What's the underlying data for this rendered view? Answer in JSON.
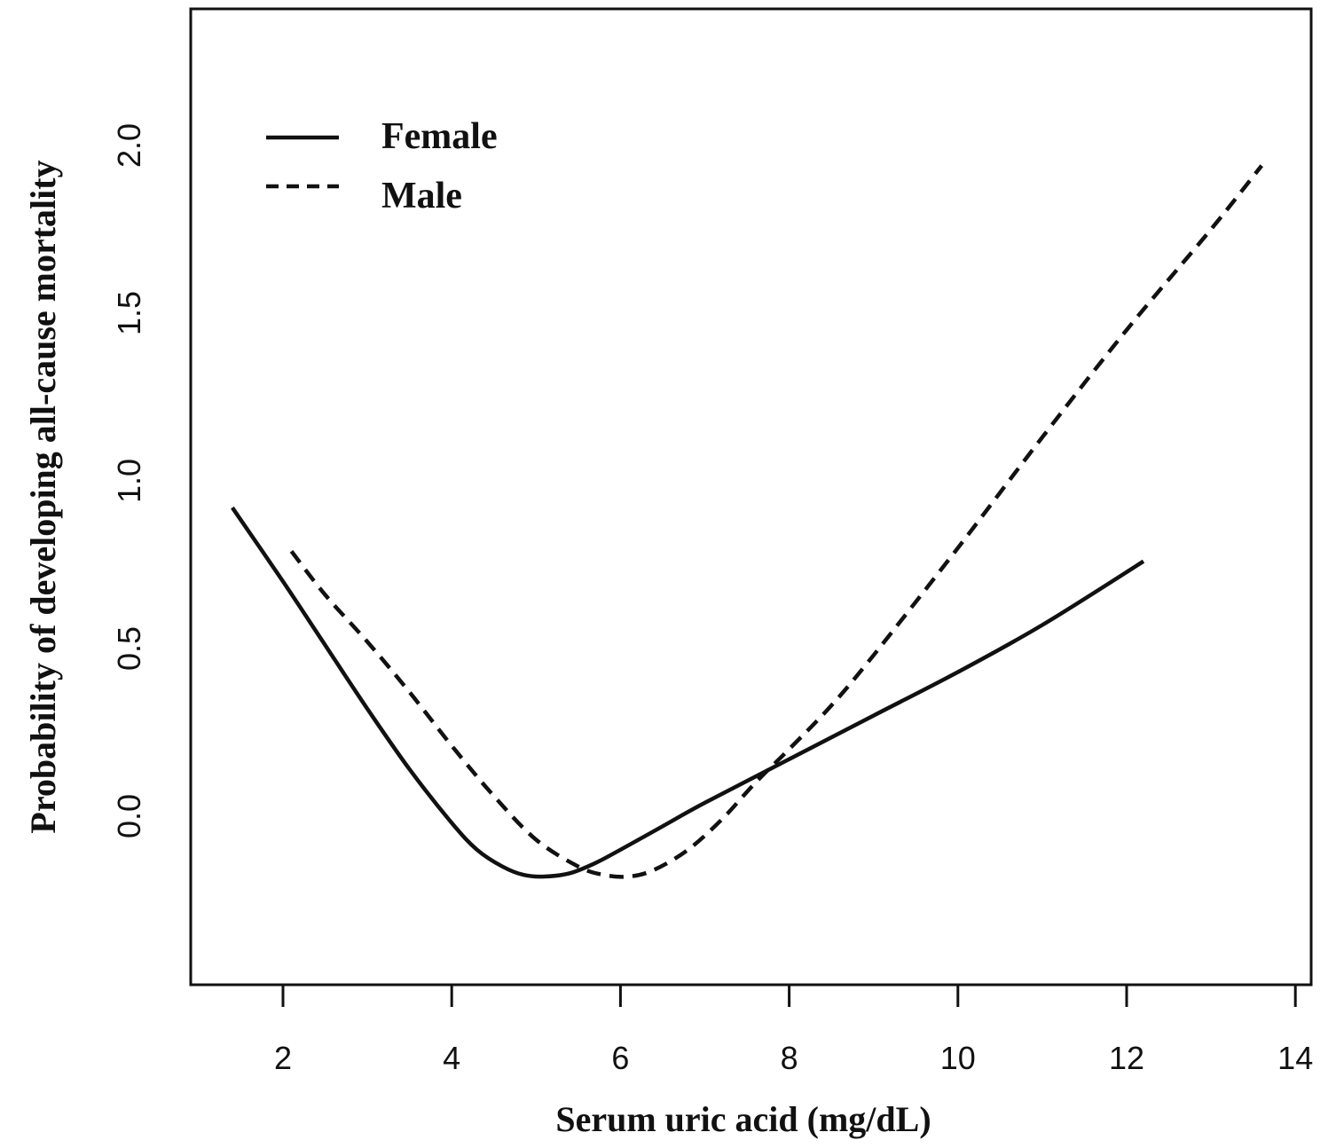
{
  "chart_data": {
    "type": "line",
    "title": "",
    "xlabel": "Serum uric acid (mg/dL)",
    "ylabel": "Probability of developing all-cause mortality",
    "xlim": [
      1.0,
      14.0
    ],
    "ylim": [
      -0.45,
      2.4
    ],
    "xticks": [
      2,
      4,
      6,
      8,
      10,
      12,
      14
    ],
    "xtick_labels": [
      "2",
      "4",
      "6",
      "8",
      "10",
      "12",
      "14"
    ],
    "yticks": [
      0.0,
      0.5,
      1.0,
      1.5,
      2.0
    ],
    "ytick_labels": [
      "0.0",
      "0.5",
      "1.0",
      "1.5",
      "2.0"
    ],
    "grid": false,
    "legend_position": "top-left",
    "series": [
      {
        "name": "Female",
        "style": "solid",
        "x": [
          1.4,
          2.0,
          2.5,
          3.0,
          3.5,
          4.0,
          4.3,
          4.6,
          4.85,
          5.1,
          5.4,
          5.7,
          6.0,
          6.5,
          7.0,
          8.0,
          9.0,
          10.0,
          11.0,
          12.2
        ],
        "y": [
          0.92,
          0.7,
          0.51,
          0.32,
          0.14,
          -0.02,
          -0.1,
          -0.15,
          -0.175,
          -0.18,
          -0.17,
          -0.14,
          -0.1,
          -0.03,
          0.04,
          0.17,
          0.3,
          0.43,
          0.57,
          0.76
        ]
      },
      {
        "name": "Male",
        "style": "dashed",
        "x": [
          2.1,
          2.5,
          3.0,
          3.5,
          4.0,
          4.5,
          5.0,
          5.5,
          5.8,
          6.1,
          6.4,
          6.8,
          7.2,
          7.6,
          8.0,
          8.5,
          9.0,
          10.0,
          11.0,
          12.0,
          13.0,
          13.6
        ],
        "y": [
          0.79,
          0.66,
          0.52,
          0.37,
          0.21,
          0.06,
          -0.07,
          -0.15,
          -0.175,
          -0.18,
          -0.16,
          -0.1,
          -0.01,
          0.1,
          0.2,
          0.33,
          0.48,
          0.8,
          1.13,
          1.45,
          1.75,
          1.94
        ]
      }
    ]
  }
}
